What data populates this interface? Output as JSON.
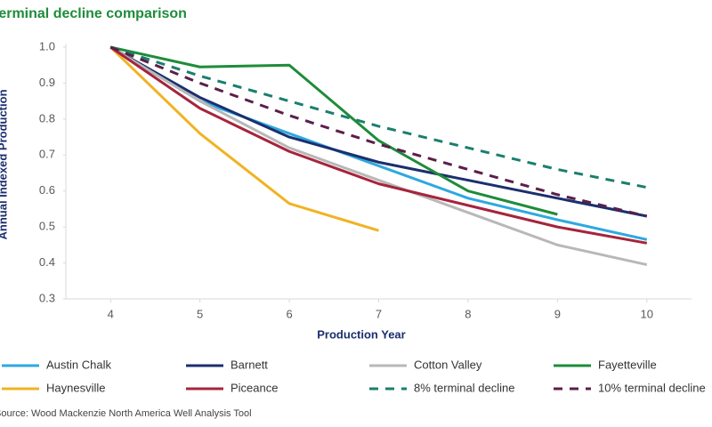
{
  "chart_data": {
    "type": "line",
    "title": "terminal decline comparison",
    "x_label": "Production Year",
    "y_label": "Annual Indexed Production",
    "source": "Source: Wood Mackenzie North America Well Analysis Tool",
    "x": [
      4,
      5,
      6,
      7,
      8,
      9,
      10
    ],
    "xlim": [
      3.5,
      10.5
    ],
    "xticks": [
      4,
      5,
      6,
      7,
      8,
      9,
      10
    ],
    "ylim": [
      0.3,
      1.0
    ],
    "yticks": [
      0.3,
      0.4,
      0.5,
      0.6,
      0.7,
      0.8,
      0.9,
      {
        "value": 1.0,
        "label": "1.0"
      }
    ],
    "grid": false,
    "legend": "bottom",
    "series": [
      {
        "name": "Austin Chalk",
        "color": "#2ea8e0",
        "style": "solid",
        "values": [
          1.0,
          0.85,
          0.76,
          0.67,
          0.58,
          0.52,
          0.465
        ]
      },
      {
        "name": "Barnett",
        "color": "#1b2f6e",
        "style": "solid",
        "values": [
          1.0,
          0.86,
          0.75,
          0.68,
          0.63,
          0.58,
          0.53
        ]
      },
      {
        "name": "Cotton Valley",
        "color": "#b8b8b8",
        "style": "solid",
        "values": [
          1.0,
          0.85,
          0.72,
          0.63,
          0.54,
          0.45,
          0.395
        ]
      },
      {
        "name": "Fayetteville",
        "color": "#1e8c3a",
        "style": "solid",
        "values": [
          1.0,
          0.945,
          0.95,
          0.74,
          0.6,
          0.535,
          null
        ]
      },
      {
        "name": "Haynesville",
        "color": "#f0b323",
        "style": "solid",
        "values": [
          1.0,
          0.76,
          0.565,
          0.49,
          null,
          null,
          null
        ]
      },
      {
        "name": "Piceance",
        "color": "#a6243c",
        "style": "solid",
        "values": [
          1.0,
          0.83,
          0.71,
          0.62,
          0.56,
          0.5,
          0.455
        ]
      },
      {
        "name": "8% terminal decline",
        "color": "#1a7f6e",
        "style": "dashed",
        "values": [
          1.0,
          0.92,
          0.85,
          0.78,
          0.72,
          0.66,
          0.61
        ]
      },
      {
        "name": "10% terminal decline",
        "color": "#5c1e4a",
        "style": "dashed",
        "values": [
          1.0,
          0.9,
          0.81,
          0.73,
          0.66,
          0.59,
          0.53
        ]
      }
    ]
  }
}
